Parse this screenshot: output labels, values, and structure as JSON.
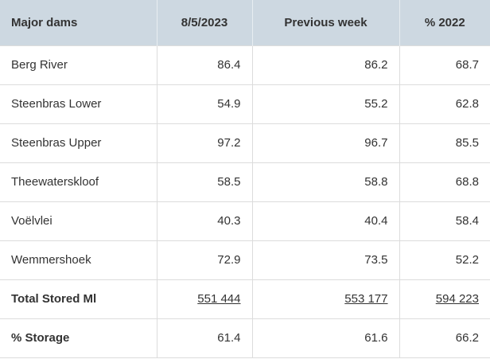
{
  "table": {
    "header": [
      "Major dams",
      "8/5/2023",
      "Previous week",
      "% 2022"
    ],
    "rows": [
      [
        "Berg River",
        86.4,
        86.2,
        68.7
      ],
      [
        "Steenbras Lower",
        54.9,
        55.2,
        62.8
      ],
      [
        "Steenbras Upper",
        97.2,
        96.7,
        85.5
      ],
      [
        "Theewaterskloof",
        58.5,
        58.8,
        68.8
      ],
      [
        "Voëlvlei",
        40.3,
        40.4,
        58.4
      ],
      [
        "Wemmershoek",
        72.9,
        73.5,
        52.2
      ],
      [
        "Total Stored Ml",
        "551 444",
        "553 177",
        "594 223"
      ],
      [
        "% Storage",
        61.4,
        61.6,
        66.2
      ]
    ]
  }
}
